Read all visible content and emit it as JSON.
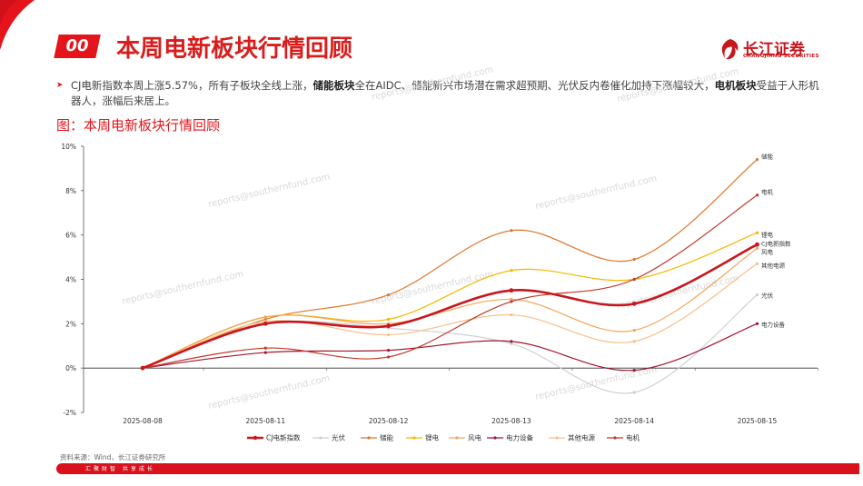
{
  "header": {
    "section_number": "00",
    "title": "本周电新板块行情回顾",
    "logo_text": "长江证券",
    "logo_sub": "CHANGJIANG SECURITIES"
  },
  "bullet": {
    "part1": "CJ电新指数本周上涨5.57%，所有子板块全线上涨，",
    "bold1": "储能板块",
    "part2": "全在AIDC、储能新兴市场潜在需求超预期、光伏反内卷催化加持下涨幅较大，",
    "bold2": "电机板块",
    "part3": "受益于人形机器人，涨幅后来居上。"
  },
  "figure_title": "图：本周电新板块行情回顾",
  "source": "资料来源：Wind，长江证券研究所",
  "footer_text": "汇聚财智 共享成长",
  "watermark": "reports@southernfund.com",
  "colors": {
    "brand_red": "#e5141b",
    "axis": "#444444"
  },
  "chart_data": {
    "type": "line",
    "x": [
      "2025-08-08",
      "2025-08-11",
      "2025-08-12",
      "2025-08-13",
      "2025-08-14",
      "2025-08-15"
    ],
    "ylim": [
      -2,
      10
    ],
    "yticks": [
      "-2%",
      "0%",
      "2%",
      "4%",
      "6%",
      "8%",
      "10%"
    ],
    "ytick_values": [
      -2,
      0,
      2,
      4,
      6,
      8,
      10
    ],
    "series": [
      {
        "name": "CJ电新指数",
        "color": "#c8161d",
        "width": 2.6,
        "values": [
          0,
          2.0,
          1.9,
          3.5,
          2.9,
          5.57
        ]
      },
      {
        "name": "光伏",
        "color": "#cfcfd6",
        "width": 1.2,
        "values": [
          0,
          2.0,
          1.8,
          1.1,
          -1.1,
          3.3
        ]
      },
      {
        "name": "储能",
        "color": "#e0762a",
        "width": 1.2,
        "values": [
          0,
          2.2,
          3.3,
          6.2,
          4.9,
          9.4
        ]
      },
      {
        "name": "锂电",
        "color": "#f5b800",
        "width": 1.2,
        "values": [
          0,
          2.3,
          2.2,
          4.4,
          4.0,
          6.1
        ]
      },
      {
        "name": "风电",
        "color": "#f2a65a",
        "width": 1.2,
        "values": [
          0,
          2.3,
          2.0,
          3.1,
          1.7,
          5.4
        ]
      },
      {
        "name": "电力设备",
        "color": "#a3152f",
        "width": 1.2,
        "values": [
          0,
          0.7,
          0.8,
          1.2,
          -0.1,
          2.0
        ]
      },
      {
        "name": "其他电源",
        "color": "#f6c08a",
        "width": 1.2,
        "values": [
          0,
          2.1,
          1.5,
          2.4,
          1.2,
          4.7
        ]
      },
      {
        "name": "电机",
        "color": "#c0392b",
        "width": 1.2,
        "values": [
          0,
          0.9,
          0.5,
          3.0,
          4.0,
          7.8
        ]
      }
    ],
    "end_labels": [
      "储能",
      "电机",
      "锂电",
      "CJ电新指数",
      "风电",
      "其他电源",
      "光伏",
      "电力设备"
    ],
    "legend_position": "bottom"
  }
}
